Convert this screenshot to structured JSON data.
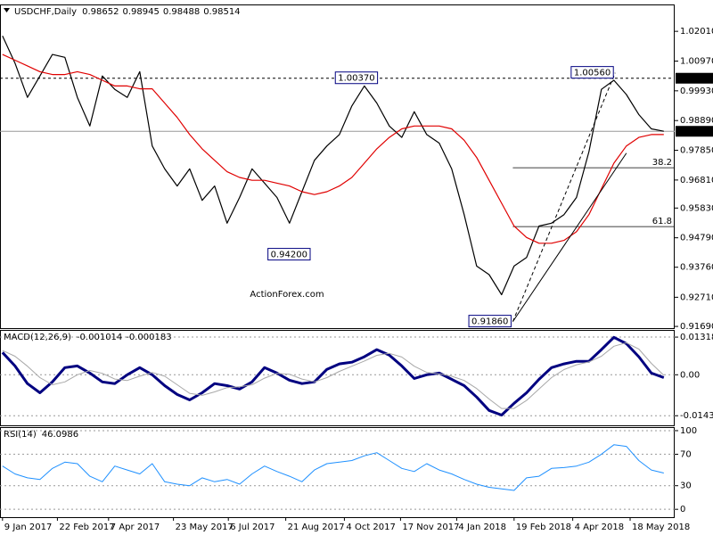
{
  "chart_data": [
    {
      "type": "line",
      "title": "USDCHF,Daily",
      "ohlc": [
        0.98652,
        0.98945,
        0.98488,
        0.98514
      ],
      "xlim": [
        -0.2,
        53.87
      ],
      "ylim": [
        0.9163,
        1.0295
      ],
      "yticks": [
        {
          "value": 1.0201,
          "label": "1.02010"
        },
        {
          "value": 1.0097,
          "label": "1.00970"
        },
        {
          "value": 0.9993,
          "label": "0.99930"
        },
        {
          "value": 0.9889,
          "label": "0.98890"
        },
        {
          "value": 0.9785,
          "label": "0.97850"
        },
        {
          "value": 0.9681,
          "label": "0.96810"
        },
        {
          "value": 0.9583,
          "label": "0.95830"
        },
        {
          "value": 0.9479,
          "label": "0.94790"
        },
        {
          "value": 0.9376,
          "label": "0.93760"
        },
        {
          "value": 0.9271,
          "label": "0.92710"
        },
        {
          "value": 0.9169,
          "label": "0.91690"
        }
      ],
      "series": [
        {
          "color": "#000000",
          "values": [
            1.0185,
            1.009,
            0.997,
            1.0045,
            1.012,
            1.011,
            0.997,
            0.987,
            1.0045,
            0.9998,
            0.997,
            1.006,
            0.98,
            0.972,
            0.966,
            0.972,
            0.961,
            0.966,
            0.953,
            0.962,
            0.972,
            0.967,
            0.962,
            0.953,
            0.964,
            0.975,
            0.98,
            0.984,
            0.994,
            1.001,
            0.995,
            0.987,
            0.983,
            0.992,
            0.984,
            0.981,
            0.972,
            0.956,
            0.938,
            0.935,
            0.928,
            0.938,
            0.941,
            0.952,
            0.953,
            0.956,
            0.962,
            0.978,
            0.9998,
            1.003,
            0.998,
            0.991,
            0.986,
            0.98514
          ]
        },
        {
          "color": "#e00000",
          "values": [
            1.012,
            1.01,
            1.008,
            1.006,
            1.005,
            1.005,
            1.006,
            1.005,
            1.003,
            1.001,
            1.001,
            1.0,
            1.0,
            0.995,
            0.99,
            0.984,
            0.979,
            0.975,
            0.971,
            0.969,
            0.968,
            0.968,
            0.967,
            0.966,
            0.964,
            0.963,
            0.964,
            0.966,
            0.969,
            0.974,
            0.979,
            0.983,
            0.986,
            0.987,
            0.987,
            0.987,
            0.986,
            0.982,
            0.976,
            0.968,
            0.96,
            0.952,
            0.948,
            0.946,
            0.946,
            0.947,
            0.95,
            0.956,
            0.965,
            0.974,
            0.98,
            0.983,
            0.984,
            0.984
          ]
        }
      ],
      "levels": [
        {
          "value": 1.0037,
          "label": "1.00370",
          "style": "dotted"
        },
        {
          "value": 0.98514,
          "label": "0.98514",
          "style": "solid"
        }
      ],
      "fib_levels": [
        {
          "x": 40.9,
          "value": 0.9724,
          "label": "38.2"
        },
        {
          "x": 40.9,
          "value": 0.9518,
          "label": "61.8"
        }
      ],
      "annotations": [
        {
          "x": 30.2,
          "value": 1.0037,
          "label": "1.00370"
        },
        {
          "x": 24.8,
          "value": 0.942,
          "label": "0.94200"
        },
        {
          "x": 40.9,
          "value": 0.9186,
          "label": "0.91860"
        },
        {
          "x": 49.1,
          "value": 1.0056,
          "label": "1.00560"
        }
      ],
      "trendlines": [
        {
          "x": [
            40.9,
            49.1
          ],
          "values": [
            0.9186,
            1.0056
          ],
          "style": "dashed"
        },
        {
          "x": [
            40.9,
            50.0
          ],
          "values": [
            0.9186,
            0.9775
          ],
          "style": "solid"
        }
      ],
      "watermark": "ActionForex.com"
    },
    {
      "type": "line",
      "title": "MACD(12,26,9)",
      "readout": [
        -0.001014,
        -0.000183
      ],
      "xlim": [
        -0.2,
        53.87
      ],
      "ylim": [
        -0.0177,
        0.0157
      ],
      "yticks": [
        0.013184,
        {
          "value": 0,
          "label": "0.00"
        },
        -0.014339
      ],
      "grid": true,
      "series": [
        {
          "color": "#000080",
          "width": 3,
          "values": [
            0.0078,
            0.0031,
            -0.0031,
            -0.0063,
            -0.0025,
            0.0025,
            0.0031,
            0.0006,
            -0.0025,
            -0.0031,
            0.0,
            0.0025,
            0.0,
            -0.0038,
            -0.0069,
            -0.0088,
            -0.0063,
            -0.0031,
            -0.0038,
            -0.005,
            -0.0025,
            0.0025,
            0.0006,
            -0.0019,
            -0.0031,
            -0.0025,
            0.0019,
            0.0038,
            0.0044,
            0.0063,
            0.0088,
            0.0069,
            0.0031,
            -0.0013,
            0.0,
            0.0006,
            -0.0016,
            -0.0038,
            -0.0078,
            -0.0125,
            -0.0141,
            -0.01,
            -0.0063,
            -0.0016,
            0.0025,
            0.0038,
            0.0047,
            0.0047,
            0.0088,
            0.0131,
            0.0109,
            0.0063,
            0.0006,
            -0.001
          ]
        },
        {
          "color": "#a8a8a8",
          "width": 1,
          "values": [
            0.0085,
            0.0065,
            0.003,
            -0.001,
            -0.0035,
            -0.0025,
            0.0,
            0.0015,
            0.0005,
            -0.0015,
            -0.002,
            -0.0005,
            0.0008,
            -0.0005,
            -0.0035,
            -0.0065,
            -0.0072,
            -0.006,
            -0.0045,
            -0.0042,
            -0.0035,
            -0.0012,
            0.0005,
            0.0002,
            -0.0015,
            -0.0025,
            -0.001,
            0.0012,
            0.003,
            0.0048,
            0.0068,
            0.0075,
            0.0062,
            0.003,
            0.0008,
            0.0003,
            -0.0005,
            -0.002,
            -0.0048,
            -0.0085,
            -0.0118,
            -0.0118,
            -0.009,
            -0.005,
            -0.001,
            0.0018,
            0.0035,
            0.0045,
            0.0065,
            0.01,
            0.0112,
            0.009,
            0.004,
            -0.0002
          ]
        }
      ]
    },
    {
      "type": "line",
      "title": "RSI(14)",
      "readout": [
        46.0986
      ],
      "xlim": [
        -0.2,
        53.87
      ],
      "ylim": [
        -10,
        104.5
      ],
      "yticks": [
        100,
        70,
        30,
        0
      ],
      "grid": true,
      "xticks": [
        {
          "value": 0,
          "label": "9 Jan 2017"
        },
        {
          "value": 4.4,
          "label": "22 Feb 2017"
        },
        {
          "value": 8.5,
          "label": "7 Apr 2017"
        },
        {
          "value": 13.7,
          "label": "23 May 2017"
        },
        {
          "value": 18.1,
          "label": "6 Jul 2017"
        },
        {
          "value": 22.7,
          "label": "21 Aug 2017"
        },
        {
          "value": 27.4,
          "label": "4 Oct 2017"
        },
        {
          "value": 31.9,
          "label": "17 Nov 2017"
        },
        {
          "value": 36.4,
          "label": "4 Jan 2018"
        },
        {
          "value": 41.0,
          "label": "19 Feb 2018"
        },
        {
          "value": 45.7,
          "label": "4 Apr 2018"
        },
        {
          "value": 50.3,
          "label": "18 May 2018"
        }
      ],
      "series": [
        {
          "color": "#1e90ff",
          "width": 1,
          "values": [
            55,
            45,
            40,
            38,
            52,
            60,
            58,
            42,
            35,
            55,
            50,
            45,
            58,
            35,
            32,
            30,
            40,
            35,
            38,
            32,
            45,
            55,
            48,
            42,
            35,
            50,
            58,
            60,
            62,
            68,
            72,
            62,
            52,
            48,
            58,
            50,
            45,
            38,
            32,
            28,
            26,
            24,
            40,
            42,
            52,
            53,
            55,
            60,
            70,
            82,
            80,
            62,
            50,
            46.0986
          ]
        }
      ]
    }
  ]
}
